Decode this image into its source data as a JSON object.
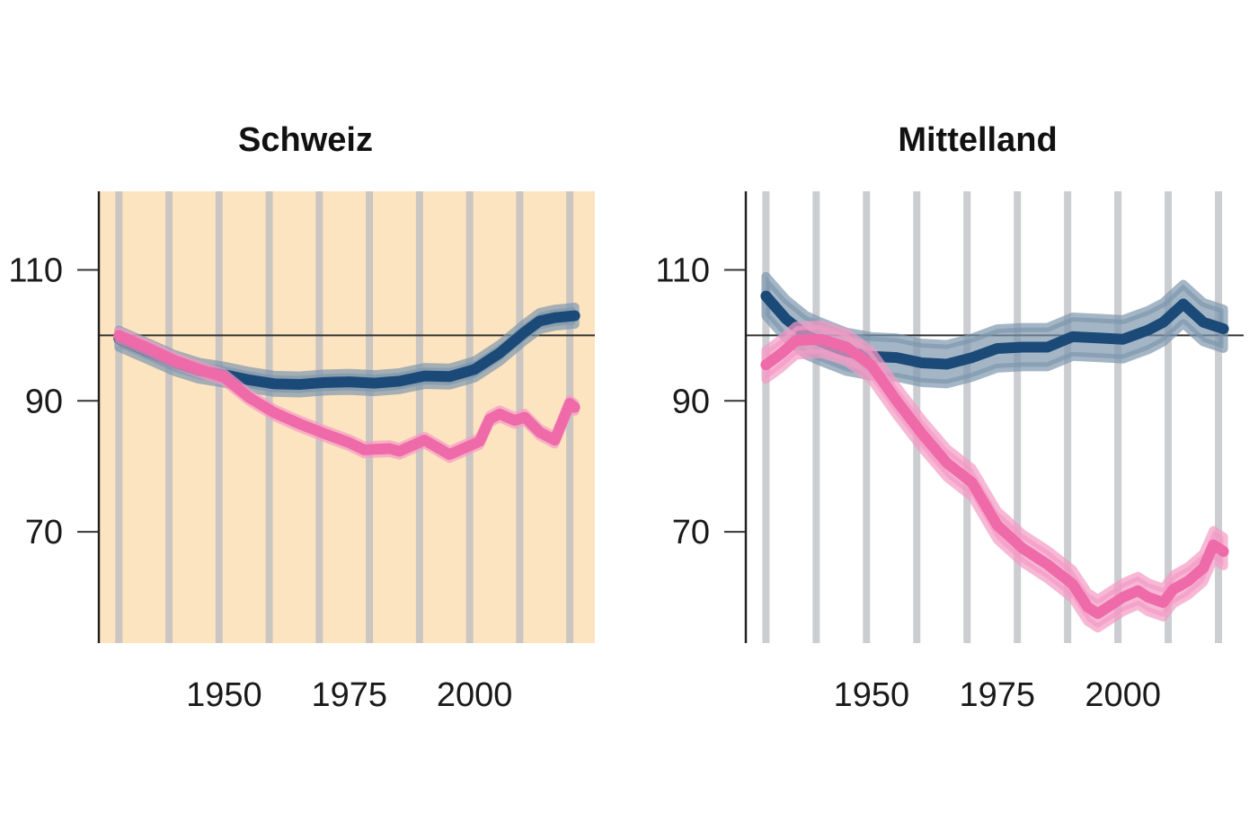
{
  "chart_data": [
    {
      "type": "line",
      "title": "Schweiz",
      "background": "#fde4c0",
      "xlim": [
        1925,
        2024
      ],
      "ylim": [
        53,
        122
      ],
      "xticks": [
        1950,
        1975,
        2000
      ],
      "yticks": [
        70,
        90,
        110
      ],
      "reference_line": 100,
      "vertical_bands": [
        1929,
        1939,
        1949,
        1959,
        1969,
        1979,
        1989,
        1999,
        2009,
        2019
      ],
      "series": [
        {
          "color": "#1b4a78",
          "band_color": "#7d97ae",
          "band_halfwidth": 1.3,
          "x": [
            1929,
            1935,
            1940,
            1945,
            1950,
            1955,
            1960,
            1965,
            1970,
            1975,
            1980,
            1985,
            1990,
            1995,
            2000,
            2005,
            2010,
            2013,
            2016,
            2020
          ],
          "y": [
            99.5,
            97.5,
            95.8,
            94.6,
            94.0,
            93.2,
            92.6,
            92.5,
            92.8,
            92.9,
            92.7,
            93.0,
            93.8,
            93.7,
            94.8,
            97.3,
            100.5,
            102.2,
            102.7,
            103.0
          ]
        },
        {
          "color": "#ef6aa8",
          "band_color": "#f49ac4",
          "band_halfwidth": 0.6,
          "x": [
            1929,
            1935,
            1940,
            1945,
            1950,
            1955,
            1960,
            1965,
            1970,
            1975,
            1978,
            1980,
            1983,
            1985,
            1990,
            1995,
            1998,
            2001,
            2003,
            2005,
            2008,
            2010,
            2013,
            2016,
            2019,
            2020
          ],
          "y": [
            100.0,
            98.0,
            96.2,
            94.8,
            93.6,
            90.5,
            88.2,
            86.5,
            85.0,
            83.6,
            82.5,
            82.6,
            82.7,
            82.3,
            84.0,
            81.8,
            82.8,
            83.8,
            87.2,
            88.0,
            87.0,
            87.5,
            85.2,
            84.0,
            89.6,
            89.0
          ]
        }
      ]
    },
    {
      "type": "line",
      "title": "Mittelland",
      "background": "#ffffff",
      "xlim": [
        1925,
        2024
      ],
      "ylim": [
        53,
        122
      ],
      "xticks": [
        1950,
        1975,
        2000
      ],
      "yticks": [
        70,
        90,
        110
      ],
      "reference_line": 100,
      "vertical_bands": [
        1929,
        1939,
        1949,
        1959,
        1969,
        1979,
        1989,
        1999,
        2009,
        2019
      ],
      "series": [
        {
          "color": "#1b4a78",
          "band_color": "#7d97ae",
          "band_halfwidth": 3.0,
          "x": [
            1929,
            1933,
            1937,
            1940,
            1945,
            1950,
            1955,
            1960,
            1965,
            1970,
            1975,
            1980,
            1985,
            1990,
            1995,
            2000,
            2005,
            2008,
            2012,
            2016,
            2020
          ],
          "y": [
            106.0,
            102.5,
            100.0,
            99.0,
            97.5,
            96.8,
            96.6,
            95.8,
            95.6,
            96.6,
            98.0,
            98.2,
            98.2,
            99.8,
            99.6,
            99.4,
            100.8,
            102.0,
            104.8,
            102.0,
            101.0
          ]
        },
        {
          "color": "#ef6aa8",
          "band_color": "#f49ac4",
          "band_halfwidth": 2.2,
          "x": [
            1929,
            1932,
            1935,
            1940,
            1945,
            1950,
            1955,
            1960,
            1965,
            1970,
            1975,
            1980,
            1985,
            1990,
            1993,
            1995,
            1997,
            2000,
            2003,
            2005,
            2008,
            2010,
            2013,
            2016,
            2018,
            2020
          ],
          "y": [
            95.5,
            97.2,
            99.2,
            99.4,
            98.2,
            95.4,
            90.0,
            85.0,
            80.5,
            77.5,
            71.0,
            67.5,
            65.0,
            62.0,
            58.5,
            57.5,
            58.5,
            60.0,
            61.0,
            60.0,
            59.2,
            61.2,
            62.5,
            64.5,
            68.0,
            67.0
          ]
        }
      ]
    }
  ]
}
